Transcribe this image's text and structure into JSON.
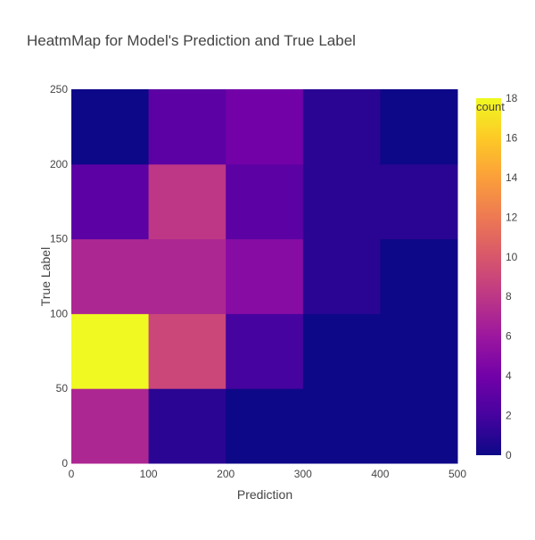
{
  "chart_data": {
    "type": "heatmap",
    "title": "HeatmMap for Model's Prediction and True Label",
    "xlabel": "Prediction",
    "ylabel": "True Label",
    "x_bins": [
      [
        0,
        100
      ],
      [
        100,
        200
      ],
      [
        200,
        300
      ],
      [
        300,
        400
      ],
      [
        400,
        500
      ]
    ],
    "y_bins": [
      [
        0,
        50
      ],
      [
        50,
        100
      ],
      [
        100,
        150
      ],
      [
        150,
        200
      ],
      [
        200,
        250
      ]
    ],
    "z": [
      [
        7,
        1,
        0,
        0,
        0
      ],
      [
        18,
        9,
        2,
        0,
        0
      ],
      [
        7,
        7,
        5,
        1,
        0
      ],
      [
        3,
        8,
        3,
        1,
        1
      ],
      [
        0,
        3,
        4,
        1,
        0
      ]
    ],
    "xlim": [
      0,
      500
    ],
    "ylim": [
      0,
      250
    ],
    "x_ticks": [
      0,
      100,
      200,
      300,
      400,
      500
    ],
    "y_ticks": [
      0,
      50,
      100,
      150,
      200,
      250
    ],
    "colorbar": {
      "title": "count",
      "range": [
        0,
        18
      ],
      "ticks": [
        0,
        2,
        4,
        6,
        8,
        10,
        12,
        14,
        16,
        18
      ],
      "colorscale": [
        [
          0.0,
          "#0d0887"
        ],
        [
          0.1111,
          "#46039f"
        ],
        [
          0.2222,
          "#7201a8"
        ],
        [
          0.3333,
          "#9c179e"
        ],
        [
          0.4444,
          "#bd3786"
        ],
        [
          0.5556,
          "#d8576b"
        ],
        [
          0.6667,
          "#ed7953"
        ],
        [
          0.7778,
          "#fb9f3a"
        ],
        [
          0.8889,
          "#fdca26"
        ],
        [
          1.0,
          "#f0f921"
        ]
      ]
    },
    "grid": false,
    "legend": "none"
  }
}
